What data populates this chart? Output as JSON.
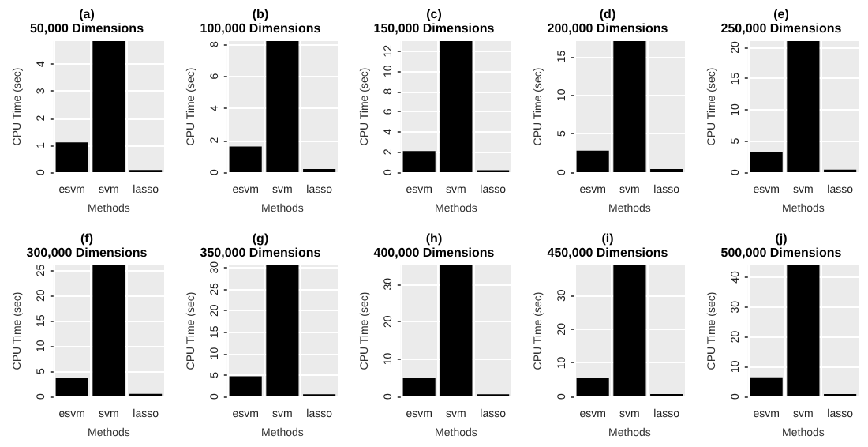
{
  "chart_data": [
    {
      "type": "bar",
      "title": "(a)",
      "subtitle": "50,000 Dimensions",
      "xlabel": "Methods",
      "ylabel": "CPU Time (sec)",
      "categories": [
        "esvm",
        "svm",
        "lasso"
      ],
      "values": [
        1.1,
        4.85,
        0.08
      ],
      "color": "#000000",
      "ylim": [
        0,
        4.85
      ],
      "yticks": [
        0,
        1,
        2,
        3,
        4
      ],
      "grid": true
    },
    {
      "type": "bar",
      "title": "(b)",
      "subtitle": "100,000 Dimensions",
      "xlabel": "Methods",
      "ylabel": "CPU Time (sec)",
      "categories": [
        "esvm",
        "svm",
        "lasso"
      ],
      "values": [
        1.6,
        8.2,
        0.2
      ],
      "color": "#000000",
      "ylim": [
        0,
        8.2
      ],
      "yticks": [
        0,
        2,
        4,
        6,
        8
      ],
      "grid": true
    },
    {
      "type": "bar",
      "title": "(c)",
      "subtitle": "150,000 Dimensions",
      "xlabel": "Methods",
      "ylabel": "CPU Time (sec)",
      "categories": [
        "esvm",
        "svm",
        "lasso"
      ],
      "values": [
        2.1,
        13,
        0.2
      ],
      "color": "#000000",
      "ylim": [
        0,
        13
      ],
      "yticks": [
        0,
        2,
        4,
        6,
        8,
        10,
        12
      ],
      "grid": true
    },
    {
      "type": "bar",
      "title": "(d)",
      "subtitle": "200,000 Dimensions",
      "xlabel": "Methods",
      "ylabel": "CPU Time (sec)",
      "categories": [
        "esvm",
        "svm",
        "lasso"
      ],
      "values": [
        2.8,
        17,
        0.4
      ],
      "color": "#000000",
      "ylim": [
        0,
        17
      ],
      "yticks": [
        0,
        5,
        10,
        15
      ],
      "grid": true
    },
    {
      "type": "bar",
      "title": "(e)",
      "subtitle": "250,000 Dimensions",
      "xlabel": "Methods",
      "ylabel": "CPU Time (sec)",
      "categories": [
        "esvm",
        "svm",
        "lasso"
      ],
      "values": [
        3.3,
        21,
        0.4
      ],
      "color": "#000000",
      "ylim": [
        0,
        21
      ],
      "yticks": [
        0,
        5,
        10,
        15,
        20
      ],
      "grid": true
    },
    {
      "type": "bar",
      "title": "(f)",
      "subtitle": "300,000 Dimensions",
      "xlabel": "Methods",
      "ylabel": "CPU Time (sec)",
      "categories": [
        "esvm",
        "svm",
        "lasso"
      ],
      "values": [
        3.7,
        26,
        0.5
      ],
      "color": "#000000",
      "ylim": [
        0,
        26
      ],
      "yticks": [
        0,
        5,
        10,
        15,
        20,
        25
      ],
      "grid": true
    },
    {
      "type": "bar",
      "title": "(g)",
      "subtitle": "350,000 Dimensions",
      "xlabel": "Methods",
      "ylabel": "CPU Time (sec)",
      "categories": [
        "esvm",
        "svm",
        "lasso"
      ],
      "values": [
        4.7,
        30.5,
        0.5
      ],
      "color": "#000000",
      "ylim": [
        0,
        30.5
      ],
      "yticks": [
        0,
        5,
        10,
        15,
        20,
        25,
        30
      ],
      "grid": true
    },
    {
      "type": "bar",
      "title": "(h)",
      "subtitle": "400,000 Dimensions",
      "xlabel": "Methods",
      "ylabel": "CPU Time (sec)",
      "categories": [
        "esvm",
        "svm",
        "lasso"
      ],
      "values": [
        5,
        35,
        0.6
      ],
      "color": "#000000",
      "ylim": [
        0,
        35
      ],
      "yticks": [
        0,
        10,
        20,
        30
      ],
      "grid": true
    },
    {
      "type": "bar",
      "title": "(i)",
      "subtitle": "450,000 Dimensions",
      "xlabel": "Methods",
      "ylabel": "CPU Time (sec)",
      "categories": [
        "esvm",
        "svm",
        "lasso"
      ],
      "values": [
        5.6,
        39,
        0.7
      ],
      "color": "#000000",
      "ylim": [
        0,
        39
      ],
      "yticks": [
        0,
        10,
        20,
        30
      ],
      "grid": true
    },
    {
      "type": "bar",
      "title": "(j)",
      "subtitle": "500,000 Dimensions",
      "xlabel": "Methods",
      "ylabel": "CPU Time (sec)",
      "categories": [
        "esvm",
        "svm",
        "lasso"
      ],
      "values": [
        6.4,
        44,
        0.8
      ],
      "color": "#000000",
      "ylim": [
        0,
        44
      ],
      "yticks": [
        0,
        10,
        20,
        30,
        40
      ],
      "grid": true
    }
  ]
}
